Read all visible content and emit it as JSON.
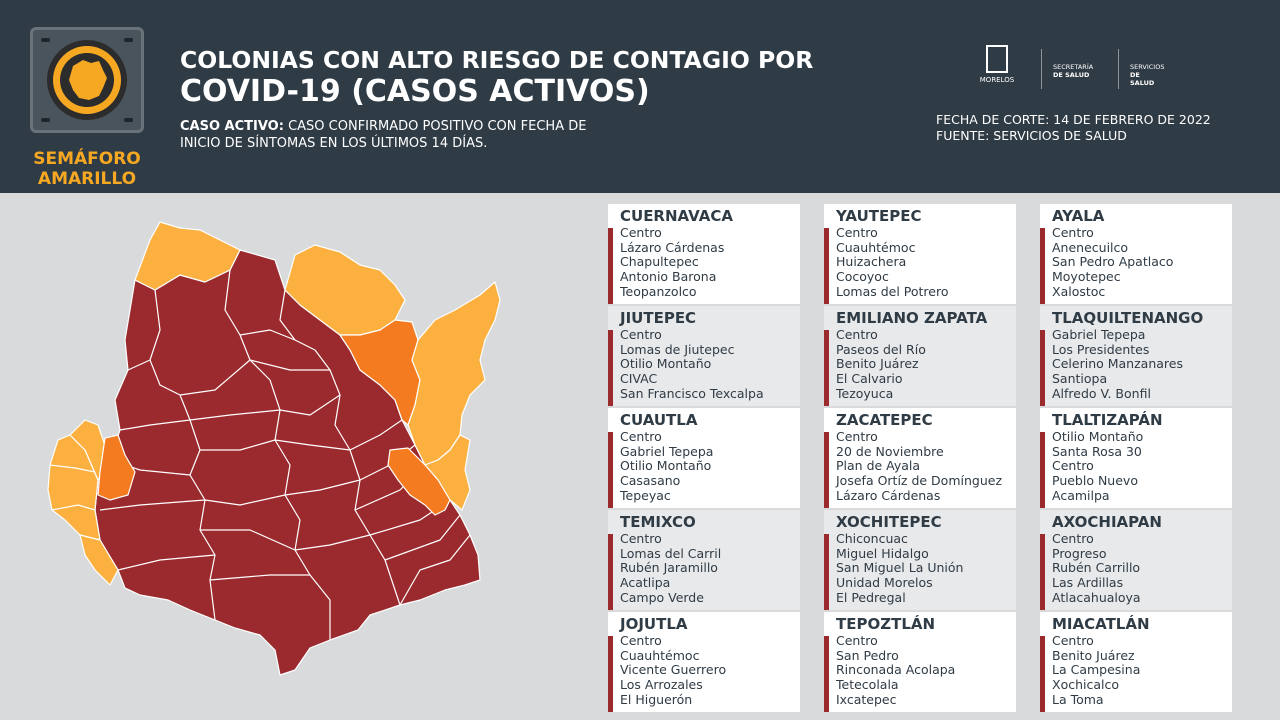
{
  "badge": {
    "line1": "SEMÁFORO",
    "line2": "AMARILLO",
    "color": "#f7a823"
  },
  "title": {
    "line1": "COLONIAS CON ALTO RIESGO DE CONTAGIO POR",
    "line2": "COVID-19 (CASOS ACTIVOS)"
  },
  "definition": {
    "label": "CASO ACTIVO:",
    "text": " CASO CONFIRMADO POSITIVO CON FECHA DE",
    "text2": "INICIO DE SÍNTOMAS EN LOS ÚLTIMOS 14 DÍAS."
  },
  "logos": {
    "morelos": "MORELOS",
    "secretaria_1": "SECRETARÍA",
    "secretaria_2": "DE SALUD",
    "servicios_1": "SERVICIOS",
    "servicios_2": "DE SALUD"
  },
  "meta": {
    "fecha": "FECHA DE CORTE: 14 DE FEBRERO DE 2022",
    "fuente": "FUENTE: SERVICIOS DE SALUD"
  },
  "colors": {
    "header": "#2f3b45",
    "high": "#9b2a2e",
    "medium": "#f47b20",
    "low": "#fbb040",
    "bar": "#9b2a2e"
  },
  "columns": [
    [
      {
        "city": "CUERNAVACA",
        "colonias": [
          "Centro",
          "Lázaro Cárdenas",
          "Chapultepec",
          "Antonio Barona",
          "Teopanzolco"
        ]
      },
      {
        "city": "JIUTEPEC",
        "colonias": [
          "Centro",
          "Lomas de Jiutepec",
          "Otilio Montaño",
          "CIVAC",
          "San Francisco Texcalpa"
        ]
      },
      {
        "city": "CUAUTLA",
        "colonias": [
          "Centro",
          "Gabriel Tepepa",
          "Otilio Montaño",
          "Casasano",
          "Tepeyac"
        ]
      },
      {
        "city": "TEMIXCO",
        "colonias": [
          "Centro",
          "Lomas del Carril",
          "Rubén Jaramillo",
          "Acatlipa",
          "Campo Verde"
        ]
      },
      {
        "city": "JOJUTLA",
        "colonias": [
          "Centro",
          "Cuauhtémoc",
          "Vicente Guerrero",
          "Los Arrozales",
          "El Higuerón"
        ]
      }
    ],
    [
      {
        "city": "YAUTEPEC",
        "colonias": [
          "Centro",
          "Cuauhtémoc",
          "Huizachera",
          "Cocoyoc",
          "Lomas del Potrero"
        ]
      },
      {
        "city": "EMILIANO ZAPATA",
        "colonias": [
          "Centro",
          "Paseos del Río",
          "Benito Juárez",
          "El Calvario",
          "Tezoyuca"
        ]
      },
      {
        "city": "ZACATEPEC",
        "colonias": [
          "Centro",
          "20 de Noviembre",
          "Plan de Ayala",
          "Josefa Ortíz de Domínguez",
          "Lázaro Cárdenas"
        ]
      },
      {
        "city": "XOCHITEPEC",
        "colonias": [
          "Chiconcuac",
          "Miguel Hidalgo",
          "San Miguel La Unión",
          "Unidad Morelos",
          "El Pedregal"
        ]
      },
      {
        "city": "TEPOZTLÁN",
        "colonias": [
          "Centro",
          "San Pedro",
          "Rinconada Acolapa",
          "Tetecolala",
          "Ixcatepec"
        ]
      }
    ],
    [
      {
        "city": "AYALA",
        "colonias": [
          "Centro",
          "Anenecuilco",
          "San Pedro Apatlaco",
          "Moyotepec",
          "Xalostoc"
        ]
      },
      {
        "city": "TLAQUILTENANGO",
        "colonias": [
          "Gabriel Tepepa",
          "Los Presidentes",
          "Celerino Manzanares",
          "Santiopa",
          "Alfredo V. Bonfil"
        ]
      },
      {
        "city": "TLALTIZAPÁN",
        "colonias": [
          "Otilio Montaño",
          "Santa Rosa 30",
          "Centro",
          "Pueblo Nuevo",
          "Acamilpa"
        ]
      },
      {
        "city": "AXOCHIAPAN",
        "colonias": [
          "Centro",
          "Progreso",
          "Rubén Carrillo",
          "Las Ardillas",
          "Atlacahualoya"
        ]
      },
      {
        "city": "MIACATLÁN",
        "colonias": [
          "Centro",
          "Benito Juárez",
          "La Campesina",
          "Xochicalco",
          "La Toma"
        ]
      }
    ]
  ]
}
